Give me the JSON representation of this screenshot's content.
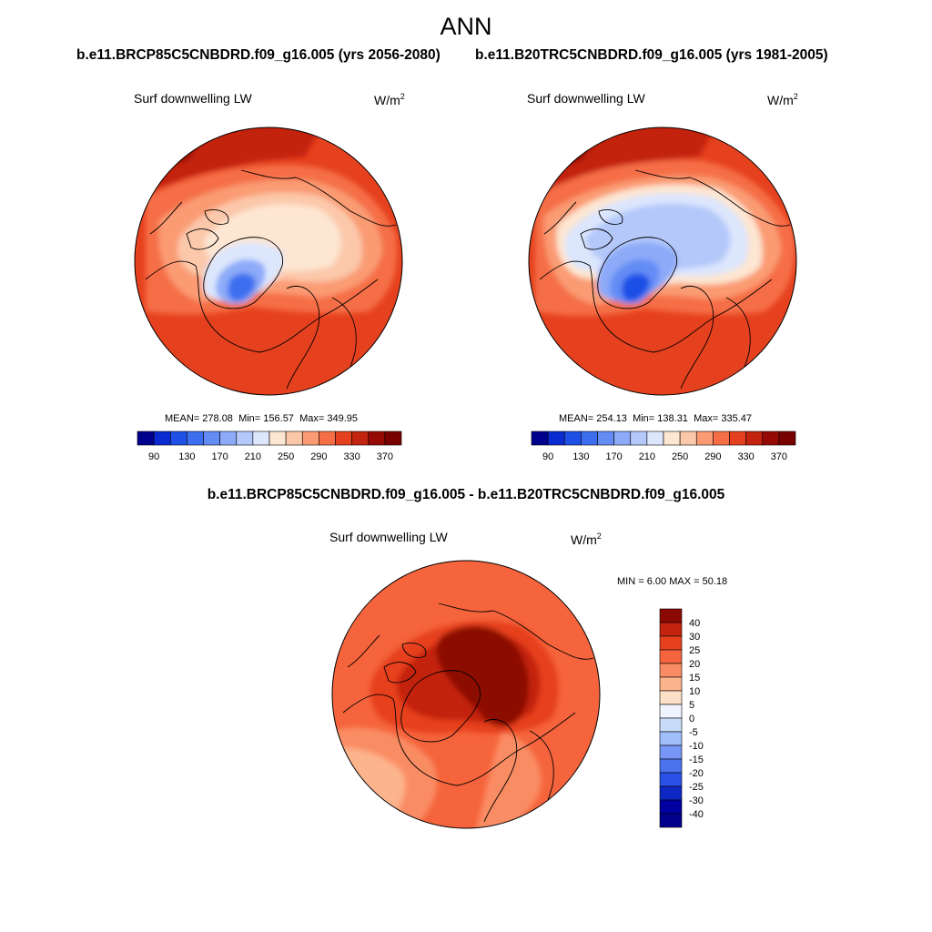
{
  "page": {
    "title": "ANN",
    "diff_title": "b.e11.BRCP85C5CNBDRD.f09_g16.005 - b.e11.B20TRC5CNBDRD.f09_g16.005"
  },
  "panels": [
    {
      "case_title": "b.e11.BRCP85C5CNBDRD.f09_g16.005 (yrs 2056-2080)",
      "variable": "Surf downwelling LW",
      "units_base": "W/m",
      "units_exp": "2",
      "stats": {
        "mean_label": "MEAN=",
        "mean": "278.08",
        "min_label": "Min=",
        "min": "156.57",
        "max_label": "Max=",
        "max": "349.95"
      }
    },
    {
      "case_title": "b.e11.B20TRC5CNBDRD.f09_g16.005 (yrs 1981-2005)",
      "variable": "Surf downwelling LW",
      "units_base": "W/m",
      "units_exp": "2",
      "stats": {
        "mean_label": "MEAN=",
        "mean": "254.13",
        "min_label": "Min=",
        "min": "138.31",
        "max_label": "Max=",
        "max": "335.47"
      }
    },
    {
      "variable": "Surf downwelling LW",
      "units_base": "W/m",
      "units_exp": "2",
      "stats": {
        "min_label": "MIN =",
        "min": "6.00",
        "max_label": "MAX =",
        "max": "50.18"
      }
    }
  ],
  "chart_data": [
    {
      "type": "heatmap",
      "projection": "north-polar-stereographic",
      "title": "b.e11.BRCP85C5CNBDRD.f09_g16.005 (yrs 2056-2080)",
      "variable": "Surf downwelling LW",
      "units": "W/m2",
      "mean": 278.08,
      "min": 156.57,
      "max": 349.95,
      "colorbar": {
        "orientation": "horizontal",
        "levels": [
          90,
          110,
          130,
          150,
          170,
          190,
          210,
          230,
          250,
          270,
          290,
          310,
          330,
          350,
          370
        ],
        "tick_labels": [
          "90",
          "130",
          "170",
          "210",
          "250",
          "290",
          "330",
          "370"
        ],
        "colors": [
          "#00008c",
          "#0a2ad2",
          "#1e50e6",
          "#3c6eef",
          "#648cf5",
          "#8caaf8",
          "#b4c8fa",
          "#dce6fd",
          "#fde6d2",
          "#fcc8aa",
          "#fa9b73",
          "#f56e46",
          "#e6411e",
          "#c3230f",
          "#960a05",
          "#780000"
        ]
      }
    },
    {
      "type": "heatmap",
      "projection": "north-polar-stereographic",
      "title": "b.e11.B20TRC5CNBDRD.f09_g16.005 (yrs 1981-2005)",
      "variable": "Surf downwelling LW",
      "units": "W/m2",
      "mean": 254.13,
      "min": 138.31,
      "max": 335.47,
      "colorbar": {
        "orientation": "horizontal",
        "levels": [
          90,
          110,
          130,
          150,
          170,
          190,
          210,
          230,
          250,
          270,
          290,
          310,
          330,
          350,
          370
        ],
        "tick_labels": [
          "90",
          "130",
          "170",
          "210",
          "250",
          "290",
          "330",
          "370"
        ],
        "colors": [
          "#00008c",
          "#0a2ad2",
          "#1e50e6",
          "#3c6eef",
          "#648cf5",
          "#8caaf8",
          "#b4c8fa",
          "#dce6fd",
          "#fde6d2",
          "#fcc8aa",
          "#fa9b73",
          "#f56e46",
          "#e6411e",
          "#c3230f",
          "#960a05",
          "#780000"
        ]
      }
    },
    {
      "type": "heatmap",
      "projection": "north-polar-stereographic",
      "title": "b.e11.BRCP85C5CNBDRD.f09_g16.005 - b.e11.B20TRC5CNBDRD.f09_g16.005",
      "variable": "Surf downwelling LW",
      "units": "W/m2",
      "min": 6.0,
      "max": 50.18,
      "colorbar": {
        "orientation": "vertical",
        "levels": [
          "40",
          "30",
          "25",
          "20",
          "15",
          "10",
          "5",
          "0",
          "-5",
          "-10",
          "-15",
          "-20",
          "-25",
          "-30",
          "-40"
        ],
        "colors": [
          "#8c0a05",
          "#c3230f",
          "#e6411e",
          "#f5643c",
          "#fa8c64",
          "#fcb48c",
          "#fde0c8",
          "#f0f4ff",
          "#c8dcfa",
          "#a0befa",
          "#7896f5",
          "#4b73f0",
          "#2850e6",
          "#0f28c3",
          "#0000a0",
          "#00008c"
        ]
      }
    }
  ]
}
